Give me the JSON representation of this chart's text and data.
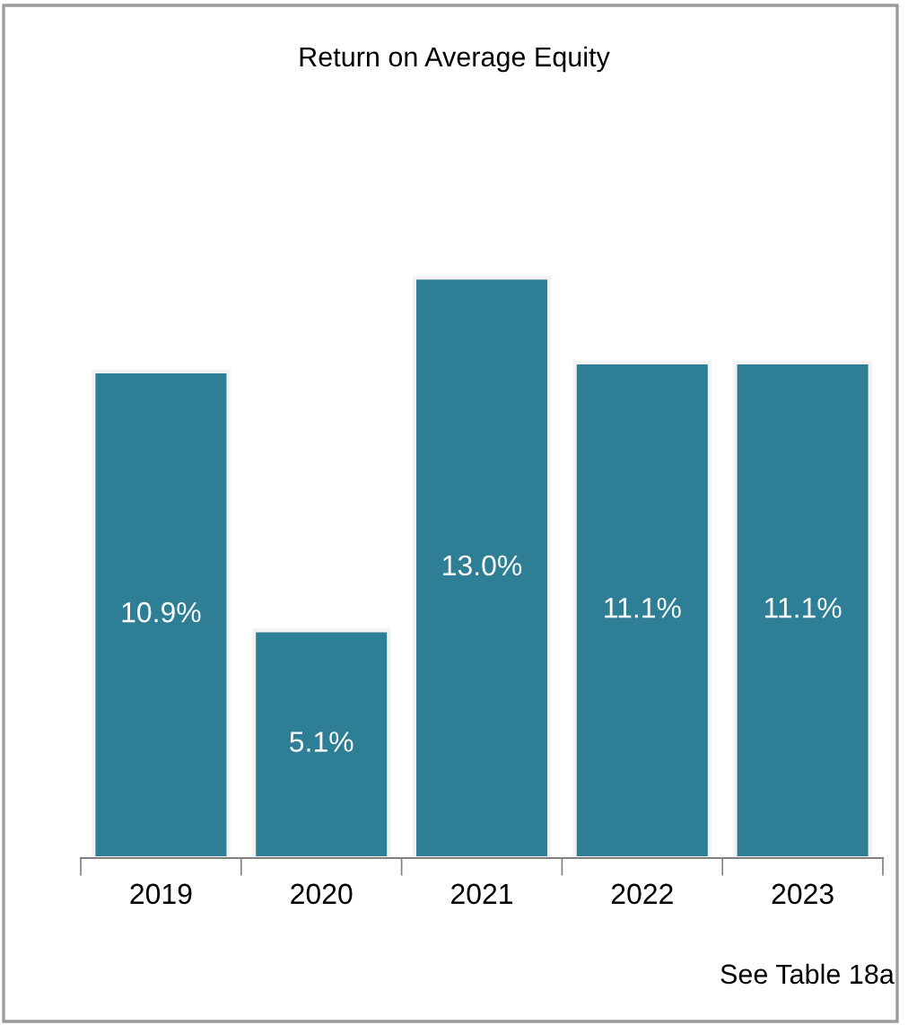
{
  "chart_data": {
    "type": "bar",
    "title": "Return on Average Equity",
    "categories": [
      "2019",
      "2020",
      "2021",
      "2022",
      "2023"
    ],
    "values": [
      10.9,
      5.1,
      13.0,
      11.1,
      11.1
    ],
    "value_labels": [
      "10.9%",
      "5.1%",
      "13.0%",
      "11.1%",
      "11.1%"
    ],
    "color": "#2e7f96",
    "grid": false,
    "legend": false,
    "annotations": [
      "See Table 18a"
    ]
  }
}
